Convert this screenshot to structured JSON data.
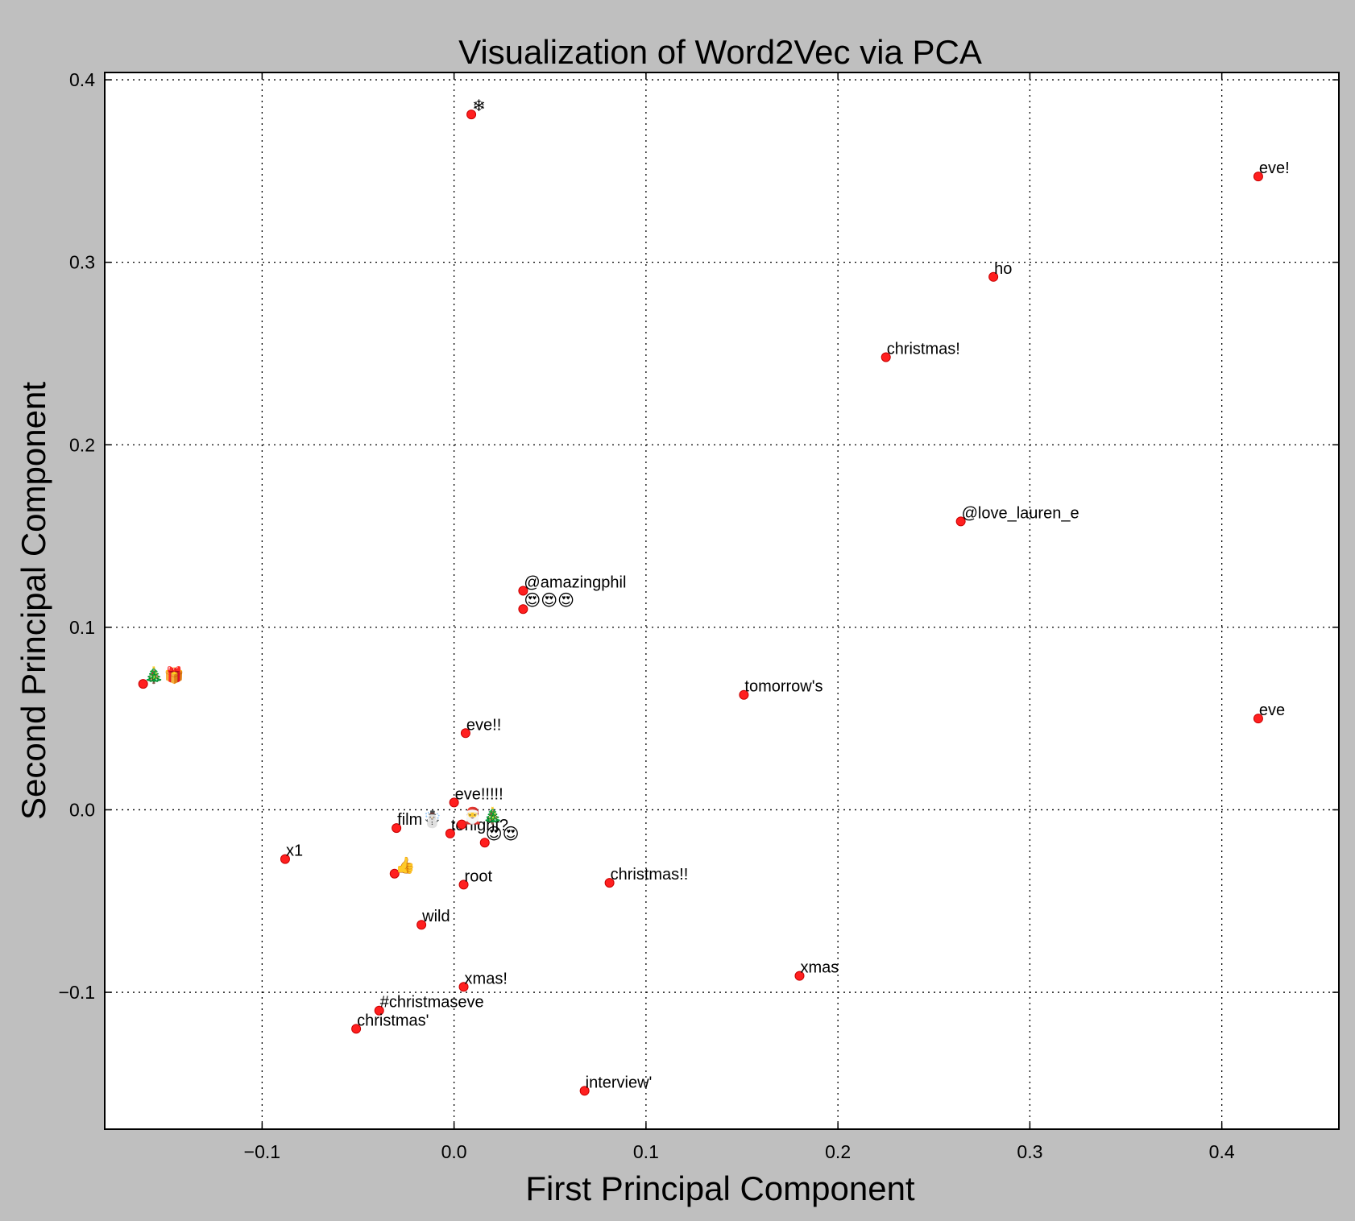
{
  "chart_data": {
    "type": "scatter",
    "title": "Visualization of Word2Vec via PCA",
    "xlabel": "First Principal Component",
    "ylabel": "Second Principal Component",
    "xlim": [
      -0.182,
      0.461
    ],
    "ylim": [
      -0.175,
      0.404
    ],
    "xticks": [
      {
        "value": -0.1,
        "label": "−0.1"
      },
      {
        "value": 0.0,
        "label": "0.0"
      },
      {
        "value": 0.1,
        "label": "0.1"
      },
      {
        "value": 0.2,
        "label": "0.2"
      },
      {
        "value": 0.3,
        "label": "0.3"
      },
      {
        "value": 0.4,
        "label": "0.4"
      }
    ],
    "yticks": [
      {
        "value": -0.1,
        "label": "−0.1"
      },
      {
        "value": 0.0,
        "label": "0.0"
      },
      {
        "value": 0.1,
        "label": "0.1"
      },
      {
        "value": 0.2,
        "label": "0.2"
      },
      {
        "value": 0.3,
        "label": "0.3"
      },
      {
        "value": 0.4,
        "label": "0.4"
      }
    ],
    "grid": true,
    "marker_color": "#ff1f1f",
    "points": [
      {
        "label": "❄",
        "x": 0.009,
        "y": 0.381
      },
      {
        "label": "eve!",
        "x": 0.419,
        "y": 0.347
      },
      {
        "label": "ho",
        "x": 0.281,
        "y": 0.292
      },
      {
        "label": "christmas!",
        "x": 0.225,
        "y": 0.248
      },
      {
        "label": "@love_lauren_e",
        "x": 0.264,
        "y": 0.158
      },
      {
        "label": "@amazingphil",
        "x": 0.036,
        "y": 0.12
      },
      {
        "label": "😍😍😍",
        "x": 0.036,
        "y": 0.11
      },
      {
        "label": "🎄🎁",
        "x": -0.162,
        "y": 0.069
      },
      {
        "label": "tomorrow's",
        "x": 0.151,
        "y": 0.063
      },
      {
        "label": "eve",
        "x": 0.419,
        "y": 0.05
      },
      {
        "label": "eve!!",
        "x": 0.006,
        "y": 0.042
      },
      {
        "label": "eve!!!!!",
        "x": 0.0,
        "y": 0.004
      },
      {
        "label": "film☃️",
        "x": -0.03,
        "y": -0.01
      },
      {
        "label": "tonight?",
        "x": -0.002,
        "y": -0.013
      },
      {
        "label": "🎅🎄",
        "x": 0.004,
        "y": -0.008
      },
      {
        "label": "😍😍",
        "x": 0.016,
        "y": -0.018
      },
      {
        "label": "x1",
        "x": -0.088,
        "y": -0.027
      },
      {
        "label": "👍",
        "x": -0.031,
        "y": -0.035
      },
      {
        "label": "root",
        "x": 0.005,
        "y": -0.041
      },
      {
        "label": "christmas!!",
        "x": 0.081,
        "y": -0.04
      },
      {
        "label": "wild",
        "x": -0.017,
        "y": -0.063
      },
      {
        "label": "xmas",
        "x": 0.18,
        "y": -0.091
      },
      {
        "label": "xmas!",
        "x": 0.005,
        "y": -0.097
      },
      {
        "label": "#christmaseve",
        "x": -0.039,
        "y": -0.11
      },
      {
        "label": "christmas'",
        "x": -0.051,
        "y": -0.12
      },
      {
        "label": "interview'",
        "x": 0.068,
        "y": -0.154
      }
    ]
  }
}
